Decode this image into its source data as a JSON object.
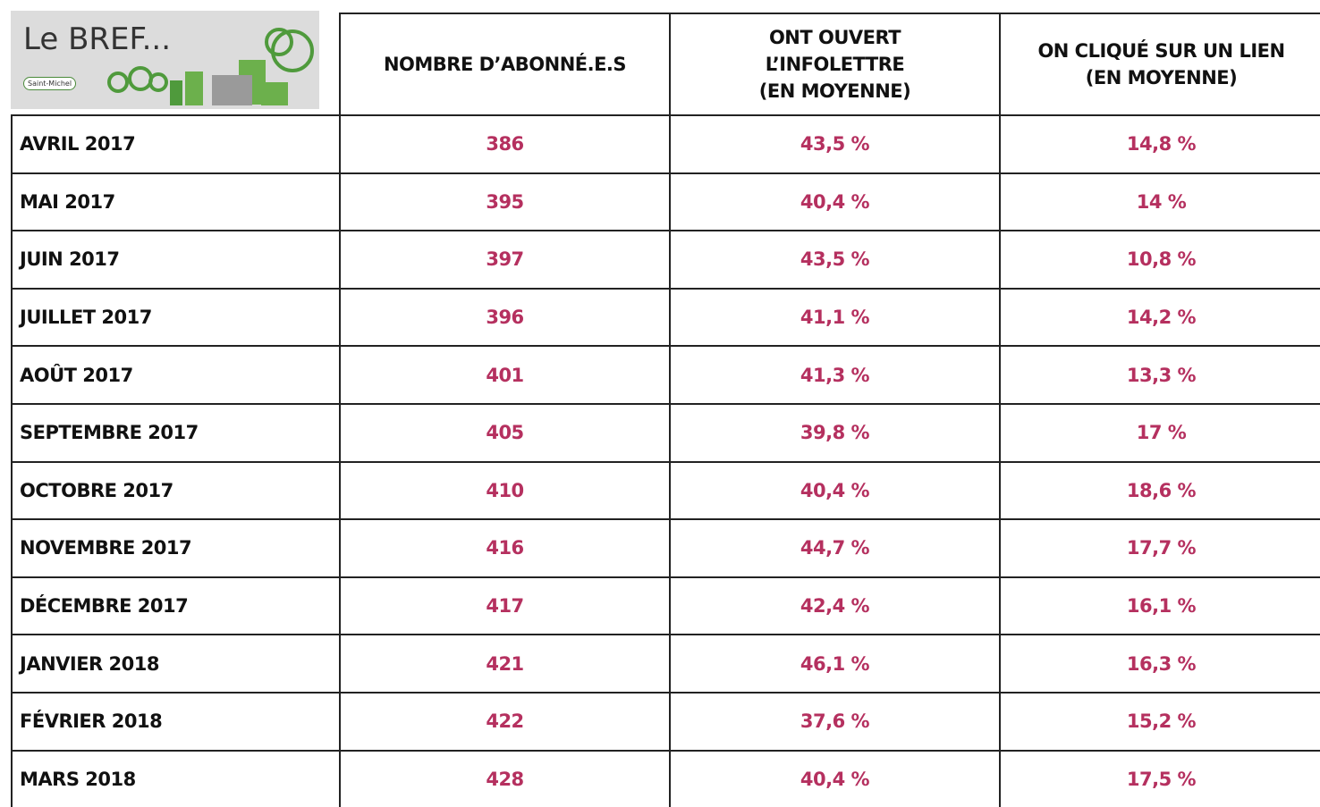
{
  "logo": {
    "title": "Le BREF...",
    "town": "Saint-Michel"
  },
  "table": {
    "headers": [
      [
        "NOMBRE D’ABONNÉ.E.S"
      ],
      [
        "ONT OUVERT",
        "L’INFOLETTRE",
        "(EN MOYENNE)"
      ],
      [
        "ON CLIQUÉ SUR UN LIEN",
        "(EN MOYENNE)"
      ]
    ],
    "rows": [
      [
        "AVRIL 2017",
        "386",
        "43,5 %",
        "14,8 %"
      ],
      [
        "MAI 2017",
        "395",
        "40,4 %",
        "14 %"
      ],
      [
        "JUIN 2017",
        "397",
        "43,5 %",
        "10,8 %"
      ],
      [
        "JUILLET 2017",
        "396",
        "41,1 %",
        "14,2 %"
      ],
      [
        "AOÛT 2017",
        "401",
        "41,3 %",
        "13,3 %"
      ],
      [
        "SEPTEMBRE 2017",
        "405",
        "39,8 %",
        "17 %"
      ],
      [
        "OCTOBRE 2017",
        "410",
        "40,4 %",
        "18,6 %"
      ],
      [
        "NOVEMBRE 2017",
        "416",
        "44,7 %",
        "17,7 %"
      ],
      [
        "DÉCEMBRE 2017",
        "417",
        "42,4 %",
        "16,1 %"
      ],
      [
        "JANVIER 2018",
        "421",
        "46,1 %",
        "16,3 %"
      ],
      [
        "FÉVRIER 2018",
        "422",
        "37,6 %",
        "15,2 %"
      ],
      [
        "MARS 2018",
        "428",
        "40,4 %",
        "17,5 %"
      ]
    ]
  }
}
